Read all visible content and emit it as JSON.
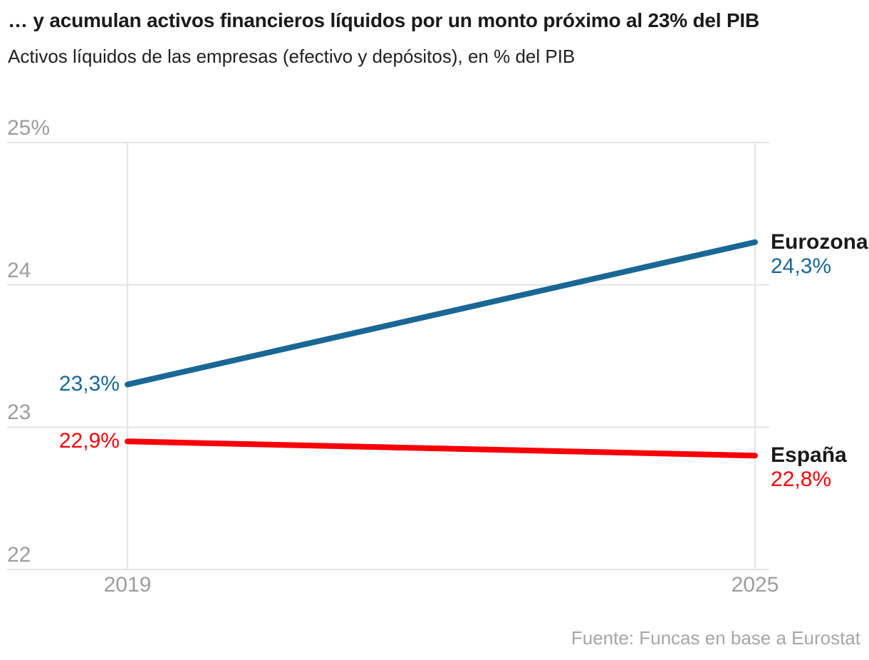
{
  "header": {
    "title": "… y acumulan activos financieros líquidos por un monto próximo al 23% del PIB",
    "subtitle": "Activos líquidos de las empresas (efectivo y depósitos), en % del PIB"
  },
  "footer": {
    "source": "Fuente: Funcas en base a Eurostat"
  },
  "theme": {
    "accent_blue": "#1a6795",
    "accent_red": "#f80008",
    "grid_color": "#e4e4e4",
    "axis_text_color": "#9d9d9d",
    "text_color": "#1a1a1a",
    "background": "#ffffff"
  },
  "chart_data": {
    "type": "line",
    "title": "… y acumulan activos financieros líquidos por un monto próximo al 23% del PIB",
    "subtitle": "Activos líquidos de las empresas (efectivo y depósitos), en % del PIB",
    "source": "Fuente: Funcas en base a Eurostat",
    "x": [
      2019,
      2025
    ],
    "xlabel": "",
    "ylabel": "% del PIB",
    "ylim": [
      22,
      25
    ],
    "grid": "horizontal gridlines at each y tick, vertical gridlines at 2019 and 2025",
    "legend": "direct end-of-line labels (no legend box)",
    "series": [
      {
        "name": "Eurozona",
        "color": "#1a6795",
        "values": [
          23.3,
          24.3
        ],
        "start_label": "23,3%",
        "end_label": "24,3%"
      },
      {
        "name": "España",
        "color": "#f80008",
        "values": [
          22.9,
          22.8
        ],
        "start_label": "22,9%",
        "end_label": "22,8%"
      }
    ],
    "yticks": [
      {
        "value": 25,
        "label": "25%"
      },
      {
        "value": 24,
        "label": "24"
      },
      {
        "value": 23,
        "label": "23"
      },
      {
        "value": 22,
        "label": "22"
      }
    ],
    "xticks": [
      {
        "value": 2019,
        "label": "2019"
      },
      {
        "value": 2025,
        "label": "2025"
      }
    ]
  }
}
